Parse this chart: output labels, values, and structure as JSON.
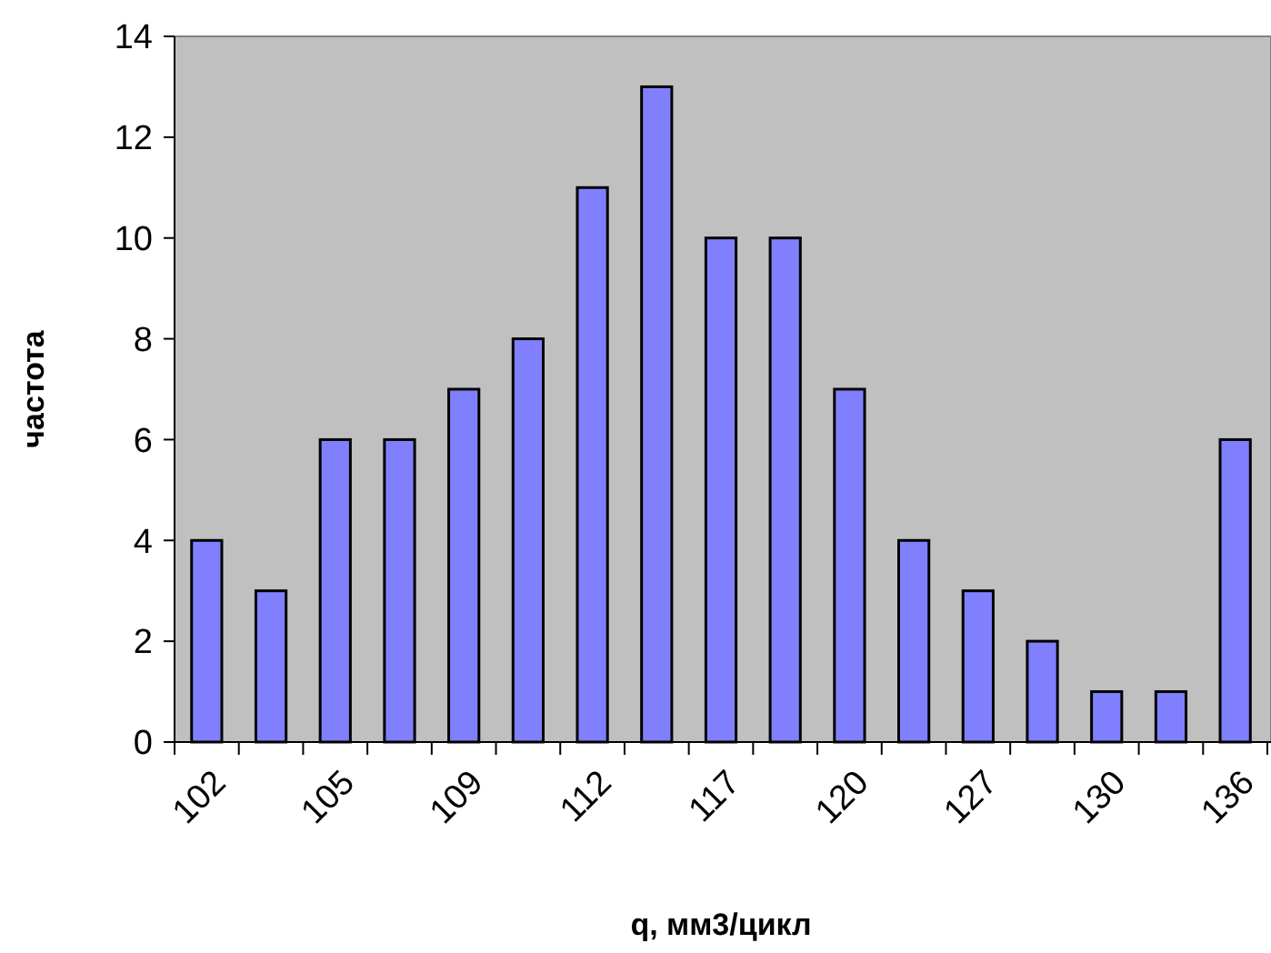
{
  "chart_data": {
    "type": "bar",
    "xlabel": "q, мм3/цикл",
    "ylabel": "частота",
    "categories": [
      "102",
      null,
      "105",
      null,
      "109",
      null,
      "112",
      null,
      "117",
      null,
      "120",
      null,
      "127",
      null,
      "130",
      null,
      "136"
    ],
    "values": [
      4,
      3,
      6,
      6,
      7,
      8,
      11,
      13,
      10,
      10,
      7,
      4,
      3,
      2,
      1,
      1,
      6
    ],
    "color": "#8080ff",
    "ylim": [
      0,
      14
    ],
    "yticks": [
      0,
      2,
      4,
      6,
      8,
      10,
      12,
      14
    ],
    "grid": false
  }
}
